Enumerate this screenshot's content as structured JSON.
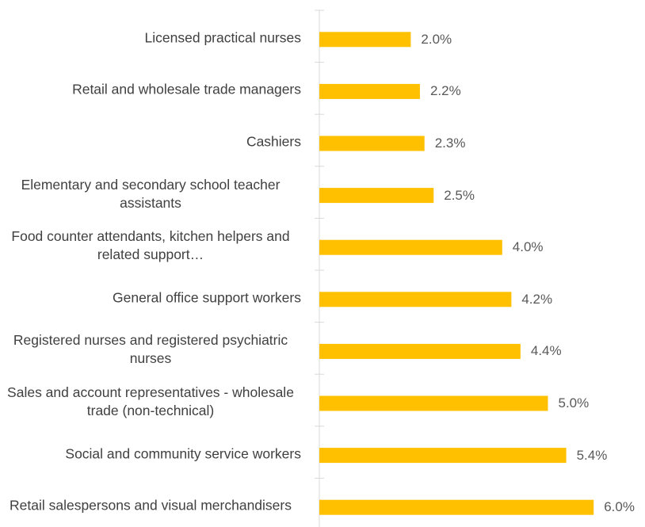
{
  "chart_data": {
    "type": "bar",
    "orientation": "horizontal",
    "color": "#ffc000",
    "categories": [
      "Licensed practical nurses",
      "Retail and wholesale trade managers",
      "Cashiers",
      "Elementary and secondary school teacher assistants",
      "Food counter attendants, kitchen helpers and related support…",
      "General office support workers",
      "Registered nurses and registered psychiatric nurses",
      "Sales and account representatives - wholesale trade (non-technical)",
      "Social and community service workers",
      "Retail salespersons and visual merchandisers"
    ],
    "values": [
      2.0,
      2.2,
      2.3,
      2.5,
      4.0,
      4.2,
      4.4,
      5.0,
      5.4,
      6.0
    ],
    "value_labels": [
      "2.0%",
      "2.2%",
      "2.3%",
      "2.5%",
      "4.0%",
      "4.2%",
      "4.4%",
      "5.0%",
      "5.4%",
      "6.0%"
    ]
  }
}
